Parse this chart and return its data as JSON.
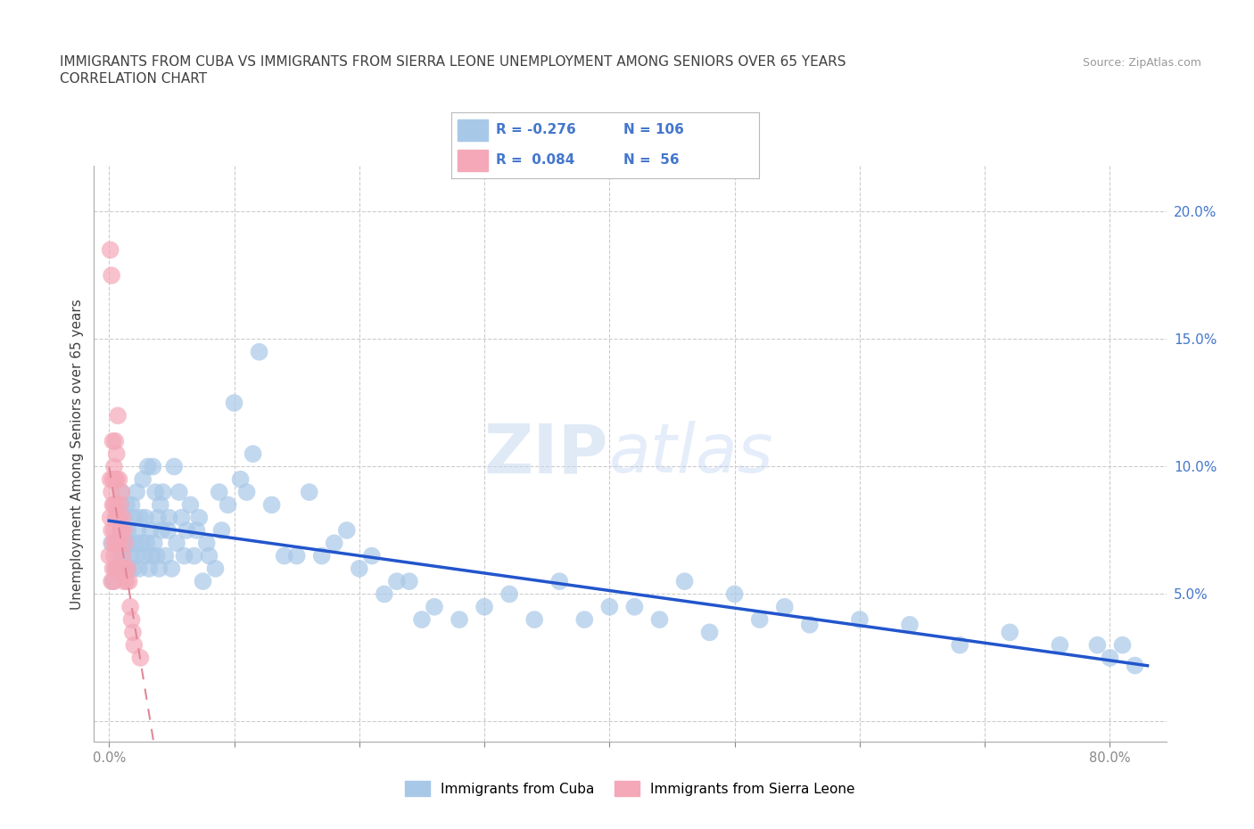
{
  "title_line1": "IMMIGRANTS FROM CUBA VS IMMIGRANTS FROM SIERRA LEONE UNEMPLOYMENT AMONG SENIORS OVER 65 YEARS",
  "title_line2": "CORRELATION CHART",
  "source_text": "Source: ZipAtlas.com",
  "ylabel": "Unemployment Among Seniors over 65 years",
  "x_ticks": [
    0.0,
    0.1,
    0.2,
    0.3,
    0.4,
    0.5,
    0.6,
    0.7,
    0.8
  ],
  "y_ticks": [
    0.0,
    0.05,
    0.1,
    0.15,
    0.2
  ],
  "xlim": [
    -0.012,
    0.845
  ],
  "ylim": [
    -0.008,
    0.218
  ],
  "cuba_R": -0.276,
  "cuba_N": 106,
  "sierra_leone_R": 0.084,
  "sierra_leone_N": 56,
  "cuba_color": "#a8c8e8",
  "sierra_leone_color": "#f4a8b8",
  "cuba_line_color": "#2255cc",
  "sierra_leone_line_color": "#e08898",
  "background_color": "#ffffff",
  "grid_color": "#cccccc",
  "title_color": "#404040",
  "axis_label_color": "#4477cc",
  "legend_R_color": "#4477cc",
  "cuba_scatter_x": [
    0.002,
    0.003,
    0.005,
    0.007,
    0.008,
    0.009,
    0.01,
    0.011,
    0.012,
    0.013,
    0.014,
    0.015,
    0.015,
    0.016,
    0.017,
    0.018,
    0.019,
    0.02,
    0.021,
    0.022,
    0.022,
    0.023,
    0.024,
    0.025,
    0.026,
    0.027,
    0.028,
    0.029,
    0.03,
    0.031,
    0.032,
    0.033,
    0.034,
    0.035,
    0.036,
    0.037,
    0.038,
    0.039,
    0.04,
    0.041,
    0.042,
    0.043,
    0.045,
    0.047,
    0.048,
    0.05,
    0.052,
    0.054,
    0.056,
    0.058,
    0.06,
    0.062,
    0.065,
    0.068,
    0.07,
    0.072,
    0.075,
    0.078,
    0.08,
    0.085,
    0.088,
    0.09,
    0.095,
    0.1,
    0.105,
    0.11,
    0.115,
    0.12,
    0.13,
    0.14,
    0.15,
    0.16,
    0.17,
    0.18,
    0.19,
    0.2,
    0.21,
    0.22,
    0.23,
    0.24,
    0.25,
    0.26,
    0.28,
    0.3,
    0.32,
    0.34,
    0.36,
    0.38,
    0.4,
    0.42,
    0.44,
    0.46,
    0.48,
    0.5,
    0.52,
    0.54,
    0.56,
    0.6,
    0.64,
    0.68,
    0.72,
    0.76,
    0.79,
    0.8,
    0.81,
    0.82
  ],
  "cuba_scatter_y": [
    0.07,
    0.055,
    0.06,
    0.08,
    0.065,
    0.075,
    0.09,
    0.065,
    0.08,
    0.07,
    0.085,
    0.06,
    0.075,
    0.07,
    0.065,
    0.085,
    0.06,
    0.08,
    0.07,
    0.065,
    0.09,
    0.075,
    0.06,
    0.08,
    0.07,
    0.095,
    0.065,
    0.08,
    0.07,
    0.1,
    0.06,
    0.075,
    0.065,
    0.1,
    0.07,
    0.09,
    0.065,
    0.08,
    0.06,
    0.085,
    0.075,
    0.09,
    0.065,
    0.075,
    0.08,
    0.06,
    0.1,
    0.07,
    0.09,
    0.08,
    0.065,
    0.075,
    0.085,
    0.065,
    0.075,
    0.08,
    0.055,
    0.07,
    0.065,
    0.06,
    0.09,
    0.075,
    0.085,
    0.125,
    0.095,
    0.09,
    0.105,
    0.145,
    0.085,
    0.065,
    0.065,
    0.09,
    0.065,
    0.07,
    0.075,
    0.06,
    0.065,
    0.05,
    0.055,
    0.055,
    0.04,
    0.045,
    0.04,
    0.045,
    0.05,
    0.04,
    0.055,
    0.04,
    0.045,
    0.045,
    0.04,
    0.055,
    0.035,
    0.05,
    0.04,
    0.045,
    0.038,
    0.04,
    0.038,
    0.03,
    0.035,
    0.03,
    0.03,
    0.025,
    0.03,
    0.022
  ],
  "sierra_leone_scatter_x": [
    0.0,
    0.001,
    0.001,
    0.001,
    0.002,
    0.002,
    0.002,
    0.002,
    0.003,
    0.003,
    0.003,
    0.003,
    0.003,
    0.004,
    0.004,
    0.004,
    0.004,
    0.004,
    0.005,
    0.005,
    0.005,
    0.005,
    0.005,
    0.006,
    0.006,
    0.006,
    0.006,
    0.006,
    0.007,
    0.007,
    0.007,
    0.007,
    0.008,
    0.008,
    0.008,
    0.008,
    0.009,
    0.009,
    0.009,
    0.01,
    0.01,
    0.01,
    0.011,
    0.011,
    0.012,
    0.012,
    0.013,
    0.013,
    0.014,
    0.015,
    0.016,
    0.017,
    0.018,
    0.019,
    0.02,
    0.025
  ],
  "sierra_leone_scatter_y": [
    0.065,
    0.08,
    0.095,
    0.185,
    0.055,
    0.075,
    0.09,
    0.175,
    0.06,
    0.07,
    0.085,
    0.095,
    0.11,
    0.055,
    0.065,
    0.075,
    0.085,
    0.1,
    0.06,
    0.07,
    0.08,
    0.095,
    0.11,
    0.06,
    0.07,
    0.085,
    0.095,
    0.105,
    0.06,
    0.07,
    0.08,
    0.12,
    0.06,
    0.07,
    0.08,
    0.095,
    0.06,
    0.075,
    0.085,
    0.06,
    0.075,
    0.09,
    0.065,
    0.08,
    0.055,
    0.075,
    0.06,
    0.07,
    0.055,
    0.06,
    0.055,
    0.045,
    0.04,
    0.035,
    0.03,
    0.025
  ]
}
